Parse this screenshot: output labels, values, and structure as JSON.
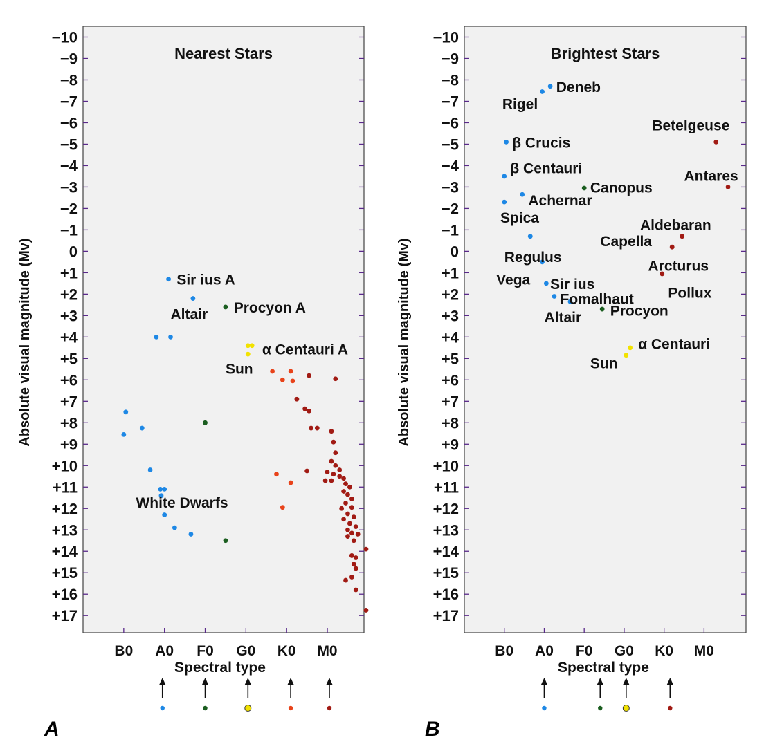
{
  "colors": {
    "B": "#1e88e5",
    "A": "#1e88e5",
    "F": "#1b5e20",
    "G": "#f2e200",
    "K": "#e8431a",
    "M": "#a11b14",
    "panel_bg": "#f1f1f1",
    "tick": "#5a2a8a"
  },
  "icons": {
    "type_marker": "up-arrow-icon"
  },
  "chart_data": [
    {
      "type": "scatter",
      "panel_label": "A",
      "title": "Nearest Stars",
      "xlabel": "Spectral type",
      "ylabel": "Absolute visual magnitude (Mv)",
      "x_categories": [
        "B0",
        "A0",
        "F0",
        "G0",
        "K0",
        "M0"
      ],
      "x_range": [
        -1,
        5.9
      ],
      "ylim": [
        -10.5,
        17.8
      ],
      "y_ticks": [
        "−10",
        "−9",
        "−8",
        "−7",
        "−6",
        "−5",
        "−4",
        "−3",
        "−2",
        "−1",
        "0",
        "+1",
        "+2",
        "+3",
        "+4",
        "+5",
        "+6",
        "+7",
        "+8",
        "+9",
        "+10",
        "+11",
        "+12",
        "+13",
        "+14",
        "+15",
        "+16",
        "+17"
      ],
      "legend_markers": [
        {
          "x": 0.95,
          "class": "A"
        },
        {
          "x": 2.0,
          "class": "F"
        },
        {
          "x": 3.05,
          "class": "G"
        },
        {
          "x": 4.1,
          "class": "K"
        },
        {
          "x": 5.05,
          "class": "M"
        }
      ],
      "points": [
        {
          "x": 1.1,
          "y": 1.3,
          "class": "A"
        },
        {
          "x": 1.7,
          "y": 2.2,
          "class": "A"
        },
        {
          "x": 0.8,
          "y": 4.0,
          "class": "A"
        },
        {
          "x": 1.15,
          "y": 4.0,
          "class": "A"
        },
        {
          "x": 2.5,
          "y": 2.6,
          "class": "F"
        },
        {
          "x": 3.05,
          "y": 4.4,
          "class": "G"
        },
        {
          "x": 3.15,
          "y": 4.4,
          "class": "G"
        },
        {
          "x": 3.05,
          "y": 4.8,
          "class": "G"
        },
        {
          "x": 0.05,
          "y": 7.5,
          "class": "B"
        },
        {
          "x": 0.0,
          "y": 8.55,
          "class": "B"
        },
        {
          "x": 0.45,
          "y": 8.25,
          "class": "B"
        },
        {
          "x": 0.65,
          "y": 10.2,
          "class": "A"
        },
        {
          "x": 0.9,
          "y": 11.1,
          "class": "A"
        },
        {
          "x": 1.0,
          "y": 11.1,
          "class": "A"
        },
        {
          "x": 0.92,
          "y": 11.4,
          "class": "A"
        },
        {
          "x": 1.0,
          "y": 12.3,
          "class": "A"
        },
        {
          "x": 1.25,
          "y": 12.9,
          "class": "A"
        },
        {
          "x": 1.65,
          "y": 13.2,
          "class": "A"
        },
        {
          "x": 2.0,
          "y": 8.0,
          "class": "F"
        },
        {
          "x": 2.5,
          "y": 13.5,
          "class": "F"
        },
        {
          "x": 3.65,
          "y": 5.6,
          "class": "K"
        },
        {
          "x": 3.9,
          "y": 6.0,
          "class": "K"
        },
        {
          "x": 4.1,
          "y": 5.6,
          "class": "K"
        },
        {
          "x": 4.15,
          "y": 6.05,
          "class": "K"
        },
        {
          "x": 3.75,
          "y": 10.4,
          "class": "K"
        },
        {
          "x": 4.1,
          "y": 10.8,
          "class": "K"
        },
        {
          "x": 3.9,
          "y": 11.95,
          "class": "K"
        },
        {
          "x": 4.55,
          "y": 5.8,
          "class": "M"
        },
        {
          "x": 5.2,
          "y": 5.95,
          "class": "M"
        },
        {
          "x": 4.25,
          "y": 6.9,
          "class": "M"
        },
        {
          "x": 4.45,
          "y": 7.35,
          "class": "M"
        },
        {
          "x": 4.55,
          "y": 7.45,
          "class": "M"
        },
        {
          "x": 4.6,
          "y": 8.25,
          "class": "M"
        },
        {
          "x": 4.75,
          "y": 8.25,
          "class": "M"
        },
        {
          "x": 4.5,
          "y": 10.25,
          "class": "M"
        },
        {
          "x": 5.1,
          "y": 8.4,
          "class": "M"
        },
        {
          "x": 5.15,
          "y": 8.9,
          "class": "M"
        },
        {
          "x": 5.2,
          "y": 9.4,
          "class": "M"
        },
        {
          "x": 5.1,
          "y": 9.8,
          "class": "M"
        },
        {
          "x": 5.2,
          "y": 10.0,
          "class": "M"
        },
        {
          "x": 5.3,
          "y": 10.2,
          "class": "M"
        },
        {
          "x": 5.0,
          "y": 10.3,
          "class": "M"
        },
        {
          "x": 5.15,
          "y": 10.4,
          "class": "M"
        },
        {
          "x": 5.3,
          "y": 10.5,
          "class": "M"
        },
        {
          "x": 4.95,
          "y": 10.7,
          "class": "M"
        },
        {
          "x": 5.4,
          "y": 10.6,
          "class": "M"
        },
        {
          "x": 5.1,
          "y": 10.7,
          "class": "M"
        },
        {
          "x": 5.45,
          "y": 10.85,
          "class": "M"
        },
        {
          "x": 5.55,
          "y": 11.0,
          "class": "M"
        },
        {
          "x": 5.4,
          "y": 11.2,
          "class": "M"
        },
        {
          "x": 5.5,
          "y": 11.35,
          "class": "M"
        },
        {
          "x": 5.6,
          "y": 11.55,
          "class": "M"
        },
        {
          "x": 5.45,
          "y": 11.75,
          "class": "M"
        },
        {
          "x": 5.6,
          "y": 11.95,
          "class": "M"
        },
        {
          "x": 5.35,
          "y": 12.0,
          "class": "M"
        },
        {
          "x": 5.5,
          "y": 12.25,
          "class": "M"
        },
        {
          "x": 5.65,
          "y": 12.4,
          "class": "M"
        },
        {
          "x": 5.4,
          "y": 12.5,
          "class": "M"
        },
        {
          "x": 5.55,
          "y": 12.7,
          "class": "M"
        },
        {
          "x": 5.7,
          "y": 12.85,
          "class": "M"
        },
        {
          "x": 5.5,
          "y": 13.0,
          "class": "M"
        },
        {
          "x": 5.6,
          "y": 13.15,
          "class": "M"
        },
        {
          "x": 5.75,
          "y": 13.2,
          "class": "M"
        },
        {
          "x": 5.5,
          "y": 13.3,
          "class": "M"
        },
        {
          "x": 5.65,
          "y": 13.5,
          "class": "M"
        },
        {
          "x": 5.6,
          "y": 14.2,
          "class": "M"
        },
        {
          "x": 5.7,
          "y": 14.3,
          "class": "M"
        },
        {
          "x": 5.65,
          "y": 14.6,
          "class": "M"
        },
        {
          "x": 5.7,
          "y": 14.8,
          "class": "M"
        },
        {
          "x": 5.95,
          "y": 13.9,
          "class": "M"
        },
        {
          "x": 5.6,
          "y": 15.2,
          "class": "M"
        },
        {
          "x": 5.45,
          "y": 15.35,
          "class": "M"
        },
        {
          "x": 5.7,
          "y": 15.8,
          "class": "M"
        },
        {
          "x": 5.95,
          "y": 16.75,
          "class": "M"
        }
      ],
      "annotations": [
        {
          "text": "Sir ius A",
          "x": 1.3,
          "y": 1.3,
          "anchor": "start"
        },
        {
          "text": "Altair",
          "x": 1.15,
          "y": 2.9,
          "anchor": "start"
        },
        {
          "text": "Procyon A",
          "x": 2.7,
          "y": 2.6,
          "anchor": "start"
        },
        {
          "text": "α Centauri A",
          "x": 3.4,
          "y": 4.55,
          "anchor": "start"
        },
        {
          "text": "Sun",
          "x": 2.5,
          "y": 5.45,
          "anchor": "start"
        },
        {
          "text": "White Dwarfs",
          "x": 0.3,
          "y": 11.7,
          "anchor": "start"
        }
      ]
    },
    {
      "type": "scatter",
      "panel_label": "B",
      "title": "Brightest Stars",
      "xlabel": "Spectral type",
      "ylabel": "Absolute visual magnitude (Mv)",
      "x_categories": [
        "B0",
        "A0",
        "F0",
        "G0",
        "K0",
        "M0"
      ],
      "x_range": [
        -1,
        6.05
      ],
      "ylim": [
        -10.5,
        17.8
      ],
      "y_ticks": [
        "−10",
        "−9",
        "−8",
        "−7",
        "−6",
        "−5",
        "−4",
        "−3",
        "−2",
        "−1",
        "0",
        "+1",
        "+2",
        "+3",
        "+4",
        "+5",
        "+6",
        "+7",
        "+8",
        "+9",
        "+10",
        "+11",
        "+12",
        "+13",
        "+14",
        "+15",
        "+16",
        "+17"
      ],
      "legend_markers": [
        {
          "x": 1.0,
          "class": "A"
        },
        {
          "x": 2.4,
          "class": "F"
        },
        {
          "x": 3.05,
          "class": "G"
        },
        {
          "x": 4.15,
          "class": "M"
        }
      ],
      "points": [
        {
          "x": 1.15,
          "y": -7.7,
          "class": "A"
        },
        {
          "x": 0.95,
          "y": -7.45,
          "class": "A"
        },
        {
          "x": 0.05,
          "y": -5.1,
          "class": "B"
        },
        {
          "x": 0.0,
          "y": -3.5,
          "class": "B"
        },
        {
          "x": 0.45,
          "y": -2.65,
          "class": "B"
        },
        {
          "x": 0.0,
          "y": -2.3,
          "class": "B"
        },
        {
          "x": 0.65,
          "y": -0.7,
          "class": "B"
        },
        {
          "x": 0.95,
          "y": 0.5,
          "class": "A"
        },
        {
          "x": 1.05,
          "y": 1.5,
          "class": "A"
        },
        {
          "x": 1.25,
          "y": 2.1,
          "class": "A"
        },
        {
          "x": 1.65,
          "y": 2.35,
          "class": "A"
        },
        {
          "x": 2.0,
          "y": -2.95,
          "class": "F"
        },
        {
          "x": 2.45,
          "y": 2.7,
          "class": "F"
        },
        {
          "x": 3.15,
          "y": 4.5,
          "class": "G"
        },
        {
          "x": 3.05,
          "y": 4.85,
          "class": "G"
        },
        {
          "x": 5.3,
          "y": -5.1,
          "class": "M"
        },
        {
          "x": 5.6,
          "y": -3.0,
          "class": "M"
        },
        {
          "x": 4.45,
          "y": -0.7,
          "class": "M"
        },
        {
          "x": 4.2,
          "y": -0.2,
          "class": "M"
        },
        {
          "x": 3.95,
          "y": 1.05,
          "class": "M"
        }
      ],
      "annotations": [
        {
          "text": "Deneb",
          "x": 1.3,
          "y": -7.7,
          "anchor": "start"
        },
        {
          "text": "Rigel",
          "x": -0.05,
          "y": -6.9,
          "anchor": "start"
        },
        {
          "text": "β Crucis",
          "x": 0.2,
          "y": -5.1,
          "anchor": "start"
        },
        {
          "text": "Betelgeuse",
          "x": 3.7,
          "y": -5.9,
          "anchor": "start"
        },
        {
          "text": "β Centauri",
          "x": 0.15,
          "y": -3.9,
          "anchor": "start"
        },
        {
          "text": "Antares",
          "x": 4.5,
          "y": -3.55,
          "anchor": "start"
        },
        {
          "text": "Canopus",
          "x": 2.15,
          "y": -3.0,
          "anchor": "start"
        },
        {
          "text": "Achernar",
          "x": 0.6,
          "y": -2.4,
          "anchor": "start"
        },
        {
          "text": "Spica",
          "x": -0.1,
          "y": -1.6,
          "anchor": "start"
        },
        {
          "text": "Aldebaran",
          "x": 3.4,
          "y": -1.25,
          "anchor": "start"
        },
        {
          "text": "Capella",
          "x": 2.4,
          "y": -0.5,
          "anchor": "start"
        },
        {
          "text": "Regulus",
          "x": 0.0,
          "y": 0.25,
          "anchor": "start"
        },
        {
          "text": "Arcturus",
          "x": 3.6,
          "y": 0.65,
          "anchor": "start"
        },
        {
          "text": "Vega",
          "x": -0.2,
          "y": 1.3,
          "anchor": "start"
        },
        {
          "text": "Sir ius",
          "x": 1.15,
          "y": 1.5,
          "anchor": "start"
        },
        {
          "text": "Pollux",
          "x": 4.1,
          "y": 1.9,
          "anchor": "start"
        },
        {
          "text": "Fomalhaut",
          "x": 1.4,
          "y": 2.2,
          "anchor": "start"
        },
        {
          "text": "Altair",
          "x": 1.0,
          "y": 3.05,
          "anchor": "start"
        },
        {
          "text": "Procyon",
          "x": 2.65,
          "y": 2.75,
          "anchor": "start"
        },
        {
          "text": "α Centauri",
          "x": 3.35,
          "y": 4.3,
          "anchor": "start"
        },
        {
          "text": "Sun",
          "x": 2.15,
          "y": 5.2,
          "anchor": "start"
        }
      ]
    }
  ]
}
